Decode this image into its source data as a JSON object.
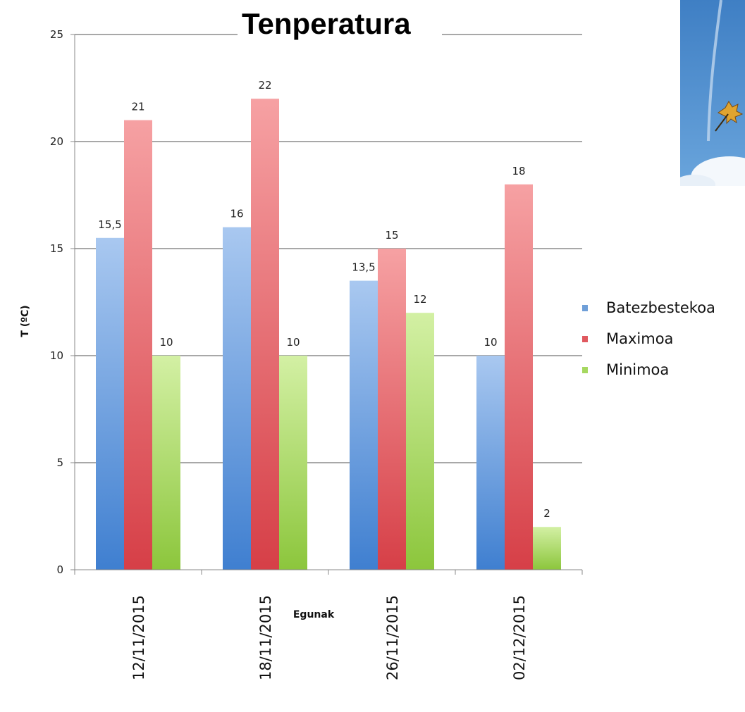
{
  "chart_data": {
    "type": "bar",
    "title": "Tenperatura",
    "xlabel": "Egunak",
    "ylabel": "T (ºC)",
    "categories": [
      "12/11/2015",
      "18/11/2015",
      "26/11/2015",
      "02/12/2015"
    ],
    "ylim": [
      0,
      25
    ],
    "yticks": [
      "0",
      "5",
      "10",
      "15",
      "20",
      "25"
    ],
    "grid": true,
    "legend_position": "right",
    "series": [
      {
        "name": "Batezbestekoa",
        "color": "#6f9fd8",
        "values": [
          15.5,
          16,
          13.5,
          10
        ],
        "labels": [
          "15,5",
          "16",
          "13,5",
          "10"
        ]
      },
      {
        "name": "Maximoa",
        "color": "#e0595f",
        "values": [
          21,
          22,
          15,
          18
        ],
        "labels": [
          "21",
          "22",
          "15",
          "18"
        ]
      },
      {
        "name": "Minimoa",
        "color": "#a6d860",
        "values": [
          10,
          10,
          12,
          2
        ],
        "labels": [
          "10",
          "10",
          "12",
          "2"
        ]
      }
    ]
  },
  "photo": {
    "icon": "autumn-leaf-sky-photo"
  }
}
